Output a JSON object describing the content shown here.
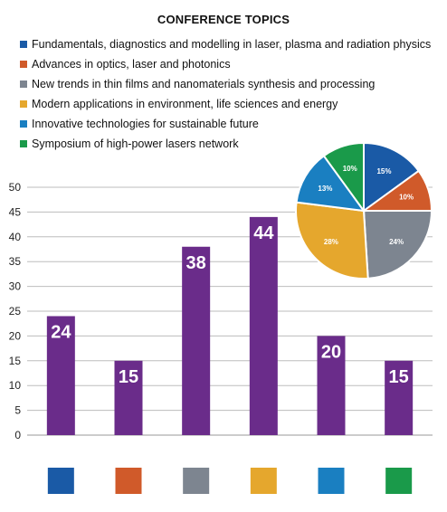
{
  "header": {
    "title": "CONFERENCE TOPICS"
  },
  "legend": {
    "items": [
      {
        "label": "Fundamentals, diagnostics and modelling in laser, plasma and radiation physics",
        "color": "#1a5aa6"
      },
      {
        "label": "Advances in optics, laser and photonics",
        "color": "#d05a2a"
      },
      {
        "label": "New trends in thin films and nanomaterials synthesis and processing",
        "color": "#7d8590"
      },
      {
        "label": "Modern applications in environment, life sciences and energy",
        "color": "#e5a72d"
      },
      {
        "label": "Innovative technologies for sustainable future",
        "color": "#1a7fc1"
      },
      {
        "label": "Symposium of high-power lasers network",
        "color": "#1a9a4a"
      }
    ]
  },
  "chart_data": [
    {
      "type": "bar",
      "values": [
        24,
        15,
        38,
        44,
        20,
        15
      ],
      "bar_color": "#6a2c8a",
      "category_colors": [
        "#1a5aa6",
        "#d05a2a",
        "#7d8590",
        "#e5a72d",
        "#1a7fc1",
        "#1a9a4a"
      ],
      "ylim": [
        0,
        50
      ],
      "yticks": [
        0,
        5,
        10,
        15,
        20,
        25,
        30,
        35,
        40,
        45,
        50
      ],
      "grid": true,
      "data_labels": [
        "24",
        "15",
        "38",
        "44",
        "20",
        "15"
      ]
    },
    {
      "type": "pie",
      "values": [
        15,
        10,
        24,
        28,
        13,
        10
      ],
      "labels": [
        "15%",
        "10%",
        "24%",
        "28%",
        "13%",
        "10%"
      ],
      "colors": [
        "#1a5aa6",
        "#d05a2a",
        "#7d8590",
        "#e5a72d",
        "#1a7fc1",
        "#1a9a4a"
      ]
    }
  ]
}
